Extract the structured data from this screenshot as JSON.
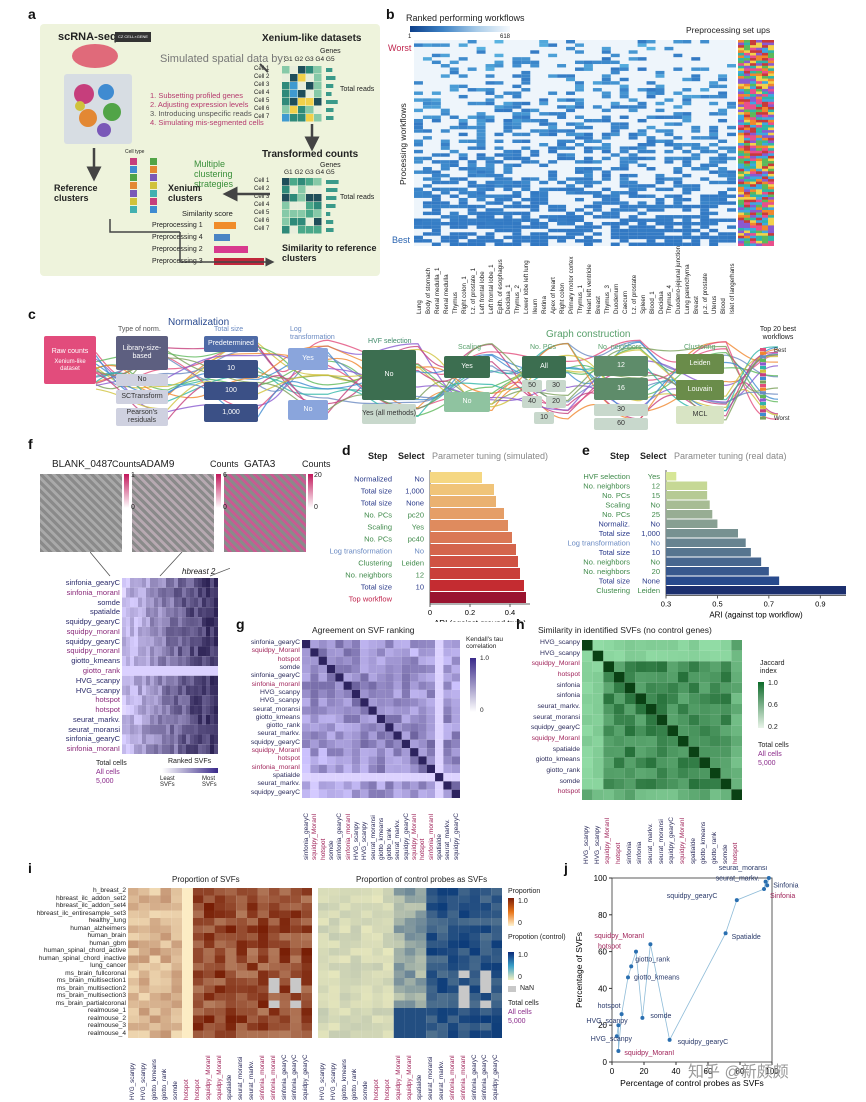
{
  "panels": {
    "a": {
      "label": "a",
      "scrna_title": "scRNA-seq",
      "czcell_logo": "CZ CELL×GENE",
      "simulated_title": "Simulated spatial data by:",
      "steps": [
        "1. Subsetting profiled genes",
        "2. Adjusting expression levels",
        "3. Introducing unspecific reads",
        "4. Simulating mis-segmented cells"
      ],
      "xenium_title": "Xenium-like datasets",
      "genes_label": "Genes",
      "genes_header": "G1 G2 G3 G4 G5",
      "cells": [
        "Cell 1",
        "Cell 2",
        "Cell 3",
        "Cell 4",
        "Cell 5",
        "Cell 6",
        "Cell 7"
      ],
      "total_reads": "Total reads",
      "transformed_title": "Transformed counts",
      "multiple_clustering": "Multiple clustering strategies",
      "reference_clusters": "Reference clusters",
      "xenium_clusters": "Xenium clusters",
      "cell_type": "Cell type",
      "similarity_score": "Similarity score",
      "preprocessing": [
        "Preprocessing 1",
        "Preprocessing 4",
        "Preprocessing 2",
        "Preprocessing 3"
      ],
      "similarity_to_ref": "Similarity to reference clusters"
    },
    "b": {
      "label": "b",
      "cbar_title": "Ranked performing workflows",
      "cbar_min": "1",
      "cbar_max": "618",
      "preproc_title": "Preprocessing set ups",
      "worst": "Worst",
      "best": "Best",
      "ylabel": "Processing workflows",
      "tissues": [
        "Lung",
        "Body of stomach",
        "Renal medulla_1",
        "Renal medulla",
        "Thymus",
        "Right colon_1",
        "t.z. of prostate_1",
        "Left frontal lobe",
        "Left frontal lobe_1",
        "Epith. of esophagus",
        "Decidua_1",
        "Thymus_2",
        "Lower lobe left lung",
        "Ileum",
        "Retina",
        "Apex of heart",
        "Right colon",
        "Primary motor cortex",
        "Thymus_1",
        "Heart left ventricle",
        "Breast",
        "Thymus_3",
        "Duodenum",
        "Caecum",
        "t.z. of prostate",
        "Spleen",
        "Blood_1",
        "Decidua",
        "Thymus_4",
        "Duodeno-jejunal junction",
        "Lung parenchyma",
        "Breast",
        "p.z. of prostate",
        "Uterus",
        "Blood",
        "Islet of langerhans"
      ]
    },
    "c": {
      "label": "c",
      "raw_counts": "Raw counts",
      "xenium_like": "Xenium-like dataset",
      "normalization": "Normalization",
      "type_of_norm": "Type of norm.",
      "library_size": "Library-size-based",
      "no": "No",
      "sctransform": "SCTransform",
      "pearson": "Pearson's residuals",
      "total_size": "Total size",
      "predetermined": "Predetermined",
      "ts_10": "10",
      "ts_100": "100",
      "ts_1000": "1,000",
      "log_transformation": "Log transformation",
      "yes": "Yes",
      "hvf_selection": "HVF selection",
      "yes_all": "Yes (all methods)",
      "scaling": "Scaling",
      "graph_construction": "Graph construction",
      "no_pcs": "No. PCs",
      "all": "All",
      "pcs": [
        "50",
        "30",
        "40",
        "20",
        "10"
      ],
      "no_neighbors": "No. neighbors",
      "neighbors": [
        "12",
        "16",
        "30",
        "60"
      ],
      "clustering": "Clustering",
      "leiden": "Leiden",
      "louvain": "Louvain",
      "mcl": "MCL",
      "top20": "Top 20 best workflows",
      "best": "Best",
      "worst": "Worst"
    },
    "d": {
      "label": "d",
      "step": "Step",
      "select": "Select",
      "tuning": "Parameter tuning (simulated)",
      "xlabel": "ARI (against ground truth)",
      "ticks": [
        "0",
        "0.2",
        "0.4"
      ]
    },
    "e": {
      "label": "e",
      "step": "Step",
      "select": "Select",
      "tuning": "Parameter tuning (real data)",
      "xlabel": "ARI (against top workflow)",
      "ticks": [
        "0.3",
        "0.5",
        "0.7",
        "0.9"
      ]
    },
    "f": {
      "label": "f",
      "genes": [
        "BLANK_0487",
        "ADAM9",
        "GATA3"
      ],
      "counts": "Counts",
      "cmax": [
        "1",
        "6",
        "20"
      ],
      "cmin": [
        "0",
        "0",
        "0"
      ],
      "sample": "hbreast 2",
      "methods": [
        "sinfonia_gearyC",
        "sinfonia_moranI",
        "somde",
        "spatialde",
        "squidpy_gearyC",
        "squidpy_moranI",
        "squidpy_gearyC",
        "squidpy_moranI",
        "giotto_kmeans",
        "giotto_rank",
        "HVG_scanpy",
        "HVG_scanpy",
        "hotspot",
        "hotspot",
        "seurat_markv.",
        "seurat_moransi",
        "sinfonia_gearyC",
        "sinfonia_moranI"
      ],
      "total_cells": "Total cells",
      "all_cells": "All cells",
      "n_cells": "5,000",
      "ranked_svfs": "Ranked SVFs",
      "least": "Least SVFs",
      "most": "Most SVFs"
    },
    "g": {
      "label": "g",
      "title": "Agreement on SVF ranking",
      "cbar_title": "Kendall's tau correlation",
      "cbar_max": "1.0",
      "cbar_min": "0",
      "methods": [
        "sinfonia_gearyC",
        "squidpy_MoranI",
        "hotspot",
        "somde",
        "sinfonia_gearyC",
        "sinfonia_moranI",
        "HVG_scanpy",
        "HVG_scanpy",
        "seurat_moransi",
        "giotto_kmeans",
        "giotto_rank",
        "seurat_markv.",
        "squidpy_gearyC",
        "squidpy_MoranI",
        "hotspot",
        "sinfonia_moranI",
        "spatialde",
        "seurat_markv.",
        "squidpy_gearyC"
      ]
    },
    "h": {
      "label": "h",
      "title": "Similarity in identified SVFs (no control genes)",
      "cbar_title": "Jaccard index",
      "cbar_max": "1.0",
      "cbar_mid": "0.6",
      "cbar_min": "0.2",
      "total_cells": "Total cells",
      "all_cells": "All cells",
      "n_cells": "5,000",
      "methods": [
        "HVG_scanpy",
        "HVG_scanpy",
        "squidpy_MoranI",
        "hotspot",
        "sinfonia",
        "sinfonia",
        "seurat_markv.",
        "seurat_moransi",
        "squidpy_gearyC",
        "squidpy_MoranI",
        "spatialde",
        "giotto_kmeans",
        "giotto_rank",
        "somde",
        "hotspot"
      ]
    },
    "i": {
      "label": "i",
      "title_left": "Proportion of SVFs",
      "title_right": "Proportion of control probes as SVFs",
      "datasets": [
        "h_breast_2",
        "hbreast_ilc_addon_set2",
        "hbreast_ilc_addon_set4",
        "hbreast_ilc_entiresample_set3",
        "healthy_lung",
        "human_alzheimers",
        "human_brain",
        "human_gbm",
        "human_spinal_chord_active",
        "human_spinal_chord_inactive",
        "lung_cancer",
        "ms_brain_fullcoronal",
        "ms_brain_multisection1",
        "ms_brain_multisection2",
        "ms_brain_multisection3",
        "ms_brain_partialcoronal",
        "realmouse_1",
        "realmouse_2",
        "realmouse_3",
        "realmouse_4"
      ],
      "methods": [
        "HVG_scanpy",
        "HVG_scanpy",
        "giotto_kmeans",
        "giotto_rank",
        "somde",
        "hotspot",
        "hotspot",
        "squidpy_MoranI",
        "squidpy_MoranI",
        "spatialde",
        "seurat_moransi",
        "seurat_markv.",
        "sinfonia_moranI",
        "sinfonia_moranI",
        "sinfonia_gearyC",
        "sinfonia_gearyC",
        "squidpy_gearyC"
      ],
      "proportion": "Proportion",
      "prop_max": "1.0",
      "prop_min": "0",
      "proportion_control": "Propotion (control)",
      "ctrl_max": "1.0",
      "ctrl_min": "0",
      "nan": "NaN",
      "total_cells": "Total cells",
      "all_cells": "All cells",
      "n_cells": "5,000"
    },
    "j": {
      "label": "j",
      "ylabel": "Percentage of SVFs",
      "xlabel": "Percentage of control probes as SVFs",
      "yticks": [
        "0",
        "20",
        "40",
        "60",
        "80",
        "100"
      ],
      "xticks": [
        "0",
        "20",
        "40",
        "60",
        "80",
        "100"
      ]
    }
  },
  "chart_data": [
    {
      "type": "bar",
      "panel": "d",
      "categories": [
        "Normalized",
        "Total size",
        "Total size",
        "No. PCs",
        "Scaling",
        "No. PCs",
        "Log transformation",
        "Clustering",
        "No. neighbors",
        "Total size",
        "Top workflow"
      ],
      "selections": [
        "No",
        "1,000",
        "None",
        "pc20",
        "Yes",
        "pc40",
        "No",
        "Leiden",
        "12",
        "10",
        ""
      ],
      "values": [
        0.26,
        0.32,
        0.33,
        0.37,
        0.39,
        0.41,
        0.43,
        0.44,
        0.45,
        0.47,
        0.48
      ],
      "xlabel": "ARI (against ground truth)",
      "xlim": [
        0,
        0.5
      ]
    },
    {
      "type": "bar",
      "panel": "e",
      "categories": [
        "HVF selection",
        "No. neighbors",
        "No. PCs",
        "Scaling",
        "No. PCs",
        "Normaliz.",
        "Total size",
        "Log transformation",
        "Total size",
        "No. neighbors",
        "No. neighbors",
        "Total size",
        "Clustering"
      ],
      "selections": [
        "Yes",
        "12",
        "15",
        "No",
        "25",
        "No",
        "1,000",
        "No",
        "10",
        "No",
        "20",
        "None",
        "Leiden"
      ],
      "values": [
        0.34,
        0.46,
        0.46,
        0.47,
        0.48,
        0.5,
        0.58,
        0.61,
        0.63,
        0.67,
        0.7,
        0.74,
        1.0
      ],
      "xlabel": "ARI (against top workflow)",
      "xlim": [
        0.3,
        1.0
      ]
    },
    {
      "type": "scatter",
      "panel": "j",
      "points": [
        {
          "label": "seurat_moransi",
          "x": 98,
          "y": 100
        },
        {
          "label": "seurat_markv.",
          "x": 96,
          "y": 98
        },
        {
          "label": "Sinfonia",
          "x": 97,
          "y": 96
        },
        {
          "label": "Sinfonia",
          "x": 95,
          "y": 94
        },
        {
          "label": "squidpy_gearyC",
          "x": 78,
          "y": 88
        },
        {
          "label": "squidpy_MoranI",
          "x": 24,
          "y": 64
        },
        {
          "label": "Spatialde",
          "x": 71,
          "y": 70
        },
        {
          "label": "hotspot",
          "x": 15,
          "y": 60
        },
        {
          "label": "giotto_rank",
          "x": 12,
          "y": 52
        },
        {
          "label": "giotto_kmeans",
          "x": 10,
          "y": 46
        },
        {
          "label": "hotspot",
          "x": 6,
          "y": 26
        },
        {
          "label": "somde",
          "x": 19,
          "y": 24
        },
        {
          "label": "HVG_scanpy",
          "x": 4,
          "y": 20
        },
        {
          "label": "HVG_scanpy",
          "x": 3,
          "y": 14
        },
        {
          "label": "squidpy_gearyC",
          "x": 36,
          "y": 12
        },
        {
          "label": "squidpy_MoranI",
          "x": 4,
          "y": 6
        }
      ],
      "xlabel": "Percentage of control probes as SVFs",
      "ylabel": "Percentage of SVFs",
      "xlim": [
        0,
        100
      ],
      "ylim": [
        0,
        100
      ]
    }
  ],
  "watermark": "知乎 @新颇颇"
}
